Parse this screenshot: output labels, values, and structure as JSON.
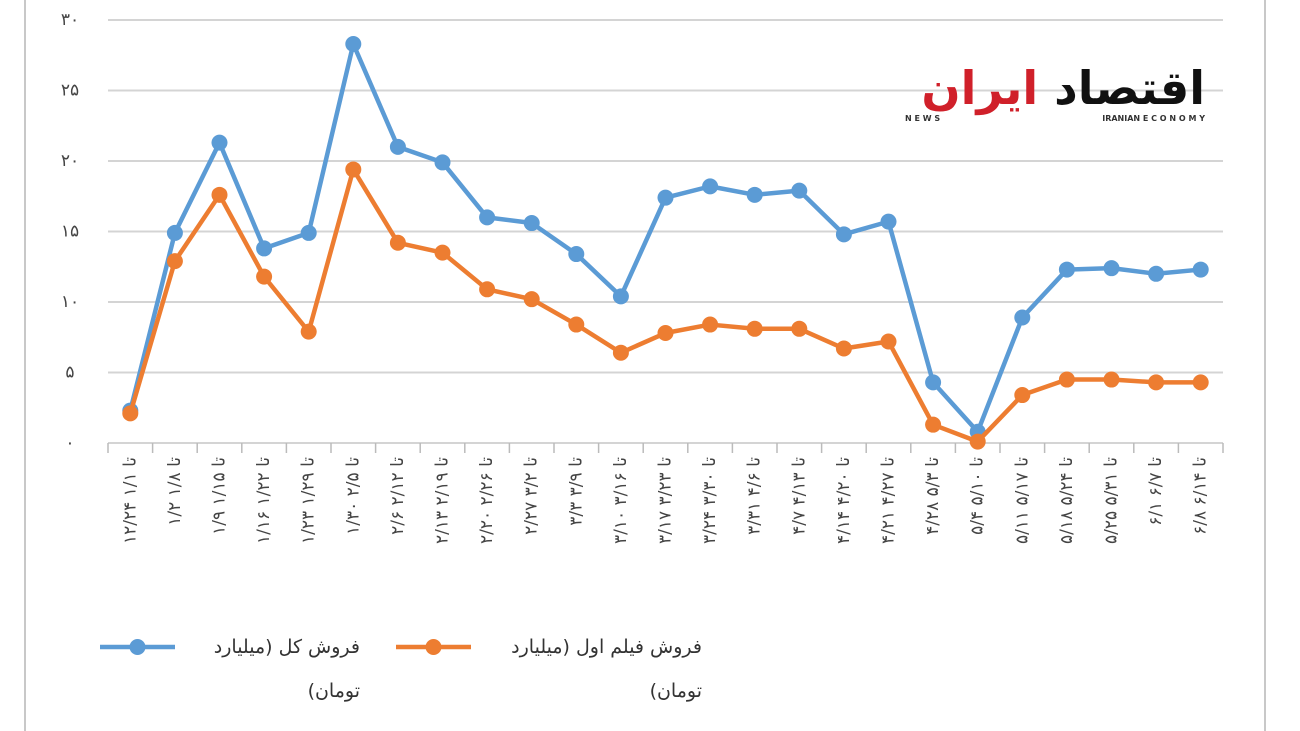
{
  "chart_data": {
    "type": "line",
    "categories": [
      "۱۲/۲۴ تا ۱/۱",
      "۱/۲ تا ۱/۸",
      "۱/۹ تا ۱/۱۵",
      "۱/۱۶ تا ۱/۲۲",
      "۱/۲۳ تا ۱/۲۹",
      "۱/۳۰ تا ۲/۵",
      "۲/۶ تا ۲/۱۲",
      "۲/۱۳ تا ۲/۱۹",
      "۲/۲۰ تا ۲/۲۶",
      "۲/۲۷ تا ۳/۲",
      "۳/۳ تا ۳/۹",
      "۳/۱۰ تا ۳/۱۶",
      "۳/۱۷ تا ۳/۲۳",
      "۳/۲۴ تا ۳/۳۰",
      "۳/۳۱ تا ۴/۶",
      "۴/۷ تا ۴/۱۳",
      "۴/۱۴ تا ۴/۲۰",
      "۴/۲۱ تا ۴/۲۷",
      "۴/۲۸ تا ۵/۳",
      "۵/۴ تا ۵/۱۰",
      "۵/۱۱ تا ۵/۱۷",
      "۵/۱۸ تا ۵/۲۴",
      "۵/۲۵ تا ۵/۳۱",
      "۶/۱ تا ۶/۷",
      "۶/۸ تا ۶/۱۴"
    ],
    "series": [
      {
        "name": "فروش کل (میلیارد تومان)",
        "color": "#5b9bd5",
        "values": [
          2.3,
          14.9,
          21.3,
          13.8,
          14.9,
          28.3,
          21.0,
          19.9,
          16.0,
          15.6,
          13.4,
          10.4,
          17.4,
          18.2,
          17.6,
          17.9,
          14.8,
          15.7,
          4.3,
          0.8,
          8.9,
          12.3,
          12.4,
          12.0,
          12.3
        ]
      },
      {
        "name": "فروش فیلم اول (میلیارد تومان)",
        "color": "#ed7d31",
        "values": [
          2.1,
          12.9,
          17.6,
          11.8,
          7.9,
          19.4,
          14.2,
          13.5,
          10.9,
          10.2,
          8.4,
          6.4,
          7.8,
          8.4,
          8.1,
          8.1,
          6.7,
          7.2,
          1.3,
          0.1,
          3.4,
          4.5,
          4.5,
          4.3,
          4.3
        ]
      }
    ],
    "ylim": [
      0,
      30
    ],
    "yticks": [
      {
        "value": 0,
        "label": "۰"
      },
      {
        "value": 5,
        "label": "۵"
      },
      {
        "value": 10,
        "label": "۱۰"
      },
      {
        "value": 15,
        "label": "۱۵"
      },
      {
        "value": 20,
        "label": "۲۰"
      },
      {
        "value": 25,
        "label": "۲۵"
      },
      {
        "value": 30,
        "label": "۳۰"
      }
    ],
    "grid": true
  },
  "watermark": {
    "title_red": "ایران",
    "title_black": "اقتصاد",
    "left": "N E W S",
    "right": "IRANIAN E C O N O M Y"
  }
}
